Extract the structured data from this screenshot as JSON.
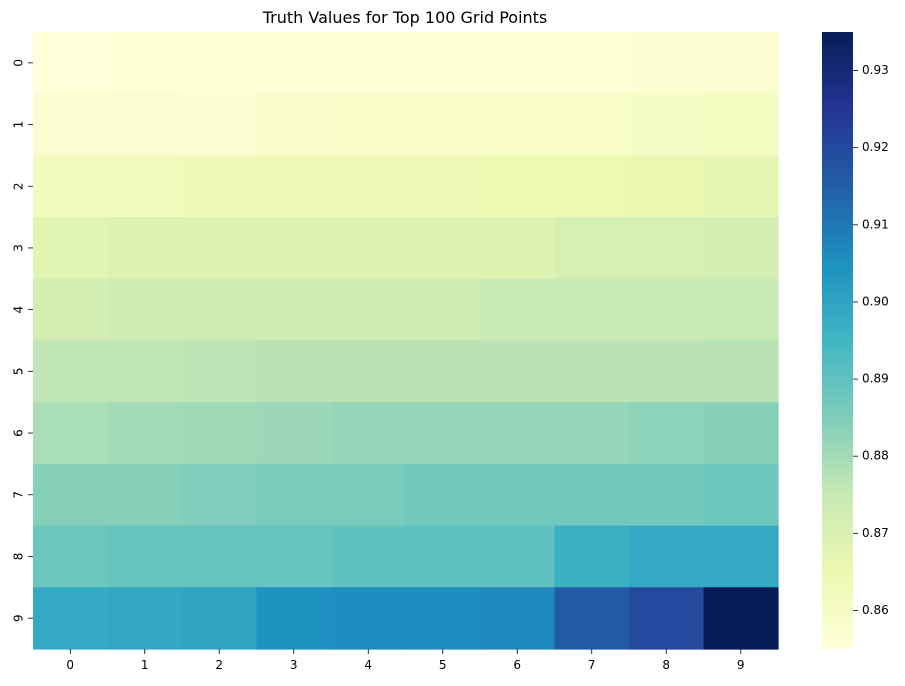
{
  "chart_data": {
    "type": "heatmap",
    "title": "Truth Values for Top 100 Grid Points",
    "xlabel": "",
    "ylabel": "",
    "x_categories": [
      "0",
      "1",
      "2",
      "3",
      "4",
      "5",
      "6",
      "7",
      "8",
      "9"
    ],
    "y_categories": [
      "0",
      "1",
      "2",
      "3",
      "4",
      "5",
      "6",
      "7",
      "8",
      "9"
    ],
    "values": [
      [
        0.855,
        0.8555,
        0.8555,
        0.8557,
        0.8557,
        0.8557,
        0.8556,
        0.8557,
        0.8568,
        0.8575
      ],
      [
        0.8575,
        0.8575,
        0.857,
        0.8585,
        0.859,
        0.859,
        0.859,
        0.859,
        0.86,
        0.861
      ],
      [
        0.862,
        0.862,
        0.863,
        0.864,
        0.864,
        0.864,
        0.865,
        0.865,
        0.866,
        0.867
      ],
      [
        0.868,
        0.869,
        0.869,
        0.869,
        0.869,
        0.869,
        0.869,
        0.871,
        0.871,
        0.872
      ],
      [
        0.872,
        0.873,
        0.873,
        0.873,
        0.873,
        0.873,
        0.874,
        0.874,
        0.874,
        0.875
      ],
      [
        0.876,
        0.876,
        0.8765,
        0.877,
        0.877,
        0.877,
        0.877,
        0.877,
        0.877,
        0.877
      ],
      [
        0.879,
        0.88,
        0.8805,
        0.881,
        0.882,
        0.882,
        0.882,
        0.882,
        0.883,
        0.884
      ],
      [
        0.884,
        0.884,
        0.885,
        0.886,
        0.886,
        0.887,
        0.887,
        0.887,
        0.887,
        0.888
      ],
      [
        0.888,
        0.889,
        0.889,
        0.889,
        0.89,
        0.89,
        0.89,
        0.8965,
        0.8985,
        0.8985
      ],
      [
        0.8985,
        0.899,
        0.9,
        0.905,
        0.9055,
        0.9055,
        0.907,
        0.916,
        0.92,
        0.935
      ]
    ],
    "vmin": 0.855,
    "vmax": 0.935,
    "colorbar": {
      "ticks": [
        "0.86",
        "0.87",
        "0.88",
        "0.89",
        "0.90",
        "0.91",
        "0.92",
        "0.93"
      ],
      "tick_values": [
        0.86,
        0.87,
        0.88,
        0.89,
        0.9,
        0.91,
        0.92,
        0.93
      ]
    },
    "colormap": "YlGnBu",
    "colormap_stops": [
      "#ffffd9",
      "#edf8b1",
      "#c7e9b4",
      "#7fcdbb",
      "#41b6c4",
      "#1d91c0",
      "#225ea8",
      "#253494",
      "#081d58"
    ],
    "grid": false
  }
}
